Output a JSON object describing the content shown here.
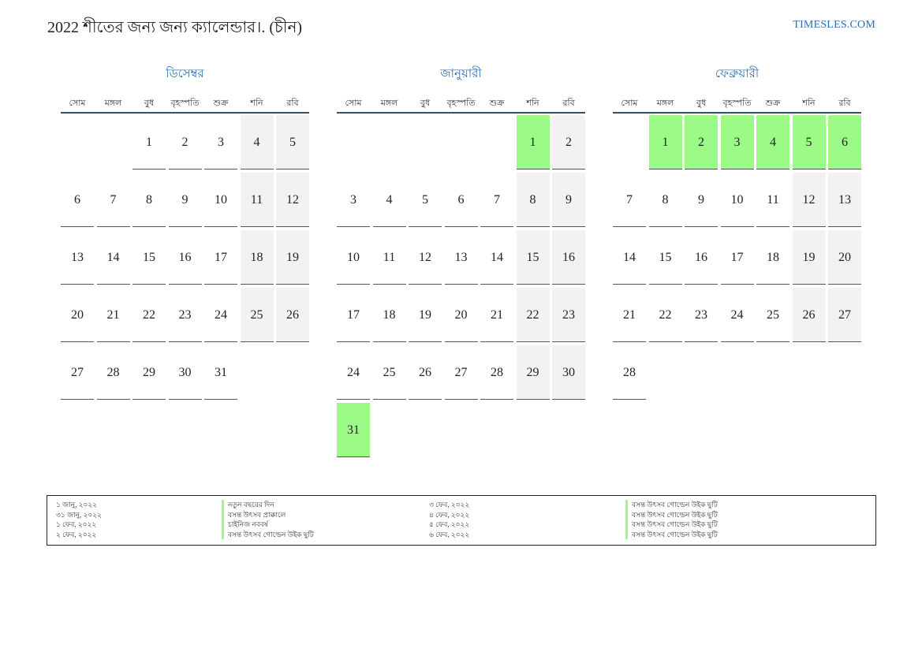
{
  "header": {
    "title": "2022 শীতের জন্য জন্য ক্যালেন্ডার।. (চীন)",
    "site": "TIMESLES.COM"
  },
  "colors": {
    "accent": "#2a6db5",
    "holiday": "#9cfa87",
    "weekend": "#f2f2f2",
    "rule": "#34506e"
  },
  "weekdays": [
    "সোম",
    "মঙ্গল",
    "বুধ",
    "বৃহস্পতি",
    "শুক্র",
    "শনি",
    "রবি"
  ],
  "months": [
    {
      "name": "ডিসেম্বর",
      "start_col": 2,
      "days": 31,
      "weekend_cols": [
        5,
        6
      ],
      "holidays": []
    },
    {
      "name": "জানুয়ারী",
      "start_col": 5,
      "days": 31,
      "weekend_cols": [
        5,
        6
      ],
      "holidays": [
        1,
        31
      ]
    },
    {
      "name": "ফেব্রুয়ারী",
      "start_col": 1,
      "days": 28,
      "weekend_cols": [
        5,
        6
      ],
      "holidays": [
        1,
        2,
        3,
        4,
        5,
        6
      ]
    }
  ],
  "legend": [
    {
      "date": "১ জানু, ২০২২",
      "name": "নতুন বছরের দিন"
    },
    {
      "date": "৩১ জানু, ২০২২",
      "name": "বসন্ত উৎসব প্রাক্কালে"
    },
    {
      "date": "১ ফেব, ২০২২",
      "name": "চাইনিজ নববর্ষ"
    },
    {
      "date": "২ ফেব, ২০২২",
      "name": "বসন্ত উৎসব গোল্ডেন উইক ছুটি"
    },
    {
      "date": "৩ ফেব, ২০২২",
      "name": "বসন্ত উৎসব গোল্ডেন উইক ছুটি"
    },
    {
      "date": "৪ ফেব, ২০২২",
      "name": "বসন্ত উৎসব গোল্ডেন উইক ছুটি"
    },
    {
      "date": "৫ ফেব, ২০২২",
      "name": "বসন্ত উৎসব গোল্ডেন উইক ছুটি"
    },
    {
      "date": "৬ ফেব, ২০২২",
      "name": "বসন্ত উৎসব গোল্ডেন উইক ছুটি"
    }
  ]
}
